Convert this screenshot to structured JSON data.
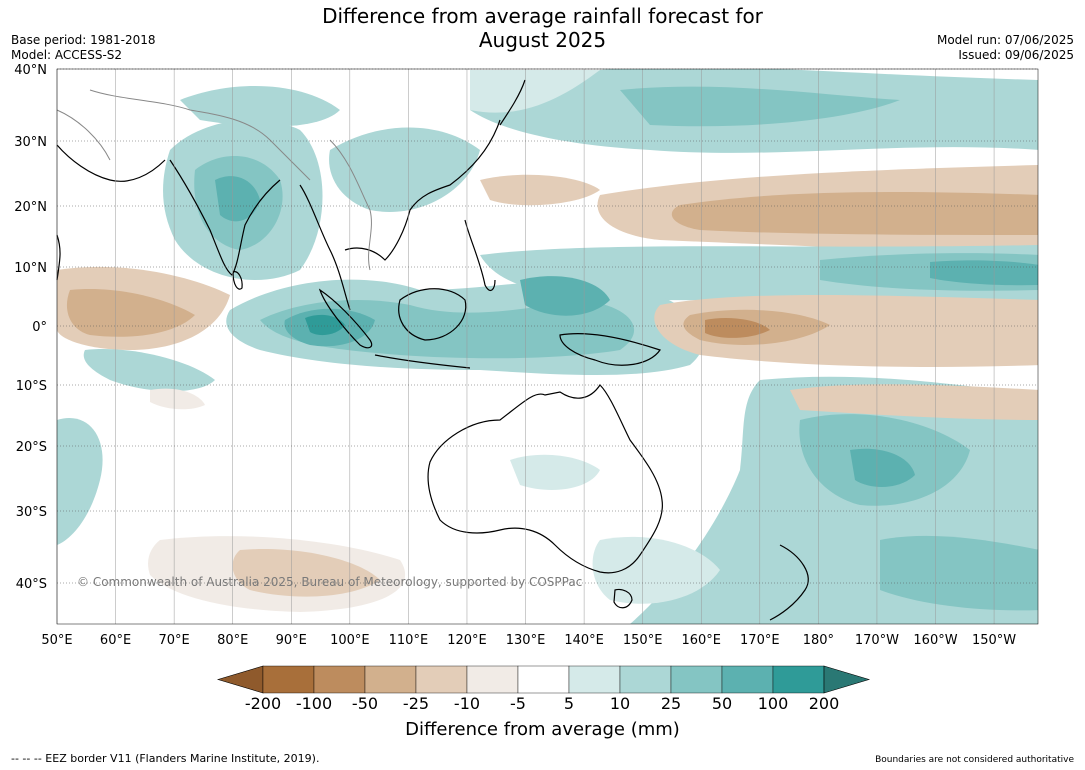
{
  "title_line1": "Difference from average rainfall forecast for",
  "title_line2": "August 2025",
  "base_period": "Base period: 1981-2018",
  "model": "Model: ACCESS-S2",
  "model_run": "Model run: 07/06/2025",
  "issued": "Issued: 09/06/2025",
  "copyright": "© Commonwealth of Australia 2025, Bureau of Meteorology, supported by COSPPac",
  "footer_left": "--  --  -- EEZ border V11 (Flanders Marine Institute, 2019).",
  "footer_right": "Boundaries are not considered authoritative",
  "map": {
    "lon_ticks": [
      "50°E",
      "60°E",
      "70°E",
      "80°E",
      "90°E",
      "100°E",
      "110°E",
      "120°E",
      "130°E",
      "140°E",
      "150°E",
      "160°E",
      "170°E",
      "180°",
      "170°W",
      "160°W",
      "150°W"
    ],
    "lat_ticks": [
      "40°N",
      "30°N",
      "20°N",
      "10°N",
      "0°",
      "10°S",
      "20°S",
      "30°S",
      "40°S"
    ]
  },
  "colorbar": {
    "title": "Difference from average (mm)",
    "tick_labels": [
      "-200",
      "-100",
      "-50",
      "-25",
      "-10",
      "-5",
      "5",
      "10",
      "25",
      "50",
      "100",
      "200"
    ],
    "colors": [
      "#a86f3a",
      "#bd8c5e",
      "#d2b08d",
      "#e3cdb8",
      "#f1ebe6",
      "#ffffff",
      "#d5eae9",
      "#acd7d6",
      "#84c5c3",
      "#5cb1b0",
      "#2f9b98"
    ],
    "extend_low": "#8f5a2c",
    "extend_high": "#2a7874"
  }
}
